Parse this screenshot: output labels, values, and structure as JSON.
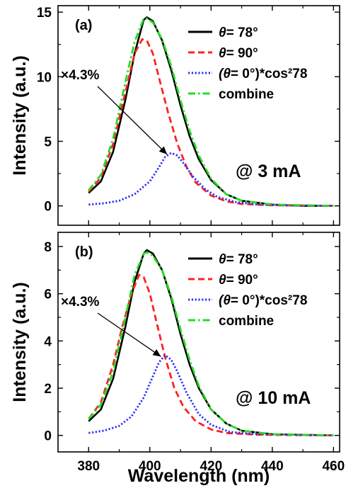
{
  "chart_data": [
    {
      "type": "line",
      "panel_label": "(a)",
      "ylabel": "Intensity (a.u.)",
      "xlabel": "",
      "xlim": [
        370,
        462
      ],
      "ylim": [
        -1.5,
        15.5
      ],
      "xticks": [
        380,
        400,
        420,
        440,
        460
      ],
      "yticks": [
        0,
        5,
        10,
        15
      ],
      "ytick_labels": [
        "0",
        "5",
        "10",
        "15"
      ],
      "legend_position": "top-right",
      "annotation_current": "@ 3 mA",
      "annotation_scale": "×4.3%",
      "series": [
        {
          "name_prefix": "θ",
          "name_suffix": "= 78°",
          "color": "#000000",
          "style": "solid",
          "points": [
            [
              380,
              1.0
            ],
            [
              384,
              1.9
            ],
            [
              388,
              4.2
            ],
            [
              392,
              8.2
            ],
            [
              395,
              11.8
            ],
            [
              398,
              14.4
            ],
            [
              399,
              14.6
            ],
            [
              401,
              14.3
            ],
            [
              404,
              12.8
            ],
            [
              407,
              10.5
            ],
            [
              410,
              7.8
            ],
            [
              413,
              5.4
            ],
            [
              416,
              3.6
            ],
            [
              420,
              2.0
            ],
            [
              425,
              0.9
            ],
            [
              430,
              0.4
            ],
            [
              440,
              0.1
            ],
            [
              450,
              0.0
            ],
            [
              460,
              0.0
            ]
          ]
        },
        {
          "name_prefix": "θ",
          "name_suffix": "= 90°",
          "color": "#ff2020",
          "style": "dash",
          "points": [
            [
              380,
              1.1
            ],
            [
              384,
              2.2
            ],
            [
              388,
              4.8
            ],
            [
              392,
              8.8
            ],
            [
              395,
              11.8
            ],
            [
              397.5,
              12.9
            ],
            [
              399,
              12.8
            ],
            [
              401,
              11.8
            ],
            [
              403,
              9.9
            ],
            [
              406,
              7.2
            ],
            [
              409,
              4.8
            ],
            [
              412,
              3.0
            ],
            [
              415,
              1.8
            ],
            [
              420,
              0.8
            ],
            [
              425,
              0.35
            ],
            [
              430,
              0.15
            ],
            [
              440,
              0.05
            ],
            [
              460,
              0.0
            ]
          ]
        },
        {
          "name_prefix": "(θ",
          "name_suffix": "= 0°)*cos²78",
          "color": "#2b2bff",
          "style": "dot",
          "points": [
            [
              380,
              0.1
            ],
            [
              385,
              0.2
            ],
            [
              390,
              0.4
            ],
            [
              395,
              0.9
            ],
            [
              400,
              1.9
            ],
            [
              403,
              3.0
            ],
            [
              405,
              3.8
            ],
            [
              407,
              4.1
            ],
            [
              409,
              3.9
            ],
            [
              411,
              3.3
            ],
            [
              414,
              2.3
            ],
            [
              418,
              1.3
            ],
            [
              422,
              0.7
            ],
            [
              428,
              0.3
            ],
            [
              435,
              0.1
            ],
            [
              445,
              0.03
            ],
            [
              460,
              0.0
            ]
          ]
        },
        {
          "name": "combine",
          "color": "#22dd22",
          "style": "dashdot",
          "points": [
            [
              380,
              1.2
            ],
            [
              384,
              2.4
            ],
            [
              388,
              5.2
            ],
            [
              392,
              9.6
            ],
            [
              395,
              12.7
            ],
            [
              398,
              14.5
            ],
            [
              399,
              14.5
            ],
            [
              401,
              14.2
            ],
            [
              404,
              12.9
            ],
            [
              407,
              10.8
            ],
            [
              410,
              8.2
            ],
            [
              413,
              5.8
            ],
            [
              416,
              3.9
            ],
            [
              420,
              2.1
            ],
            [
              425,
              0.9
            ],
            [
              430,
              0.4
            ],
            [
              440,
              0.1
            ],
            [
              460,
              0.0
            ]
          ]
        }
      ]
    },
    {
      "type": "line",
      "panel_label": "(b)",
      "ylabel": "Intensity (a.u.)",
      "xlabel": "Wavelength (nm)",
      "xlim": [
        370,
        462
      ],
      "ylim": [
        -0.7,
        8.6
      ],
      "xticks": [
        380,
        400,
        420,
        440,
        460
      ],
      "yticks": [
        0,
        2,
        4,
        6,
        8
      ],
      "ytick_labels": [
        "0",
        "2",
        "4",
        "6",
        "8"
      ],
      "xtick_labels": [
        "380",
        "400",
        "420",
        "440",
        "460"
      ],
      "legend_position": "top-right",
      "annotation_current": "@ 10 mA",
      "annotation_scale": "×4.3%",
      "series": [
        {
          "name_prefix": "θ",
          "name_suffix": "= 78°",
          "color": "#000000",
          "style": "solid",
          "points": [
            [
              380,
              0.6
            ],
            [
              384,
              1.1
            ],
            [
              388,
              2.4
            ],
            [
              392,
              4.6
            ],
            [
              395,
              6.5
            ],
            [
              398,
              7.7
            ],
            [
              399,
              7.85
            ],
            [
              401,
              7.7
            ],
            [
              404,
              7.0
            ],
            [
              407,
              5.8
            ],
            [
              410,
              4.3
            ],
            [
              413,
              3.0
            ],
            [
              416,
              2.0
            ],
            [
              420,
              1.1
            ],
            [
              425,
              0.5
            ],
            [
              430,
              0.2
            ],
            [
              440,
              0.05
            ],
            [
              460,
              0.0
            ]
          ]
        },
        {
          "name_prefix": "θ",
          "name_suffix": "= 90°",
          "color": "#ff2020",
          "style": "dash",
          "points": [
            [
              380,
              0.7
            ],
            [
              384,
              1.4
            ],
            [
              388,
              3.0
            ],
            [
              391,
              4.6
            ],
            [
              394,
              6.0
            ],
            [
              396.5,
              6.8
            ],
            [
              398,
              6.7
            ],
            [
              400,
              6.0
            ],
            [
              402,
              4.9
            ],
            [
              405,
              3.3
            ],
            [
              408,
              2.0
            ],
            [
              411,
              1.2
            ],
            [
              415,
              0.6
            ],
            [
              420,
              0.25
            ],
            [
              425,
              0.1
            ],
            [
              435,
              0.03
            ],
            [
              460,
              0.0
            ]
          ]
        },
        {
          "name_prefix": "(θ",
          "name_suffix": "= 0°)*cos²78",
          "color": "#2b2bff",
          "style": "dot",
          "points": [
            [
              380,
              0.1
            ],
            [
              385,
              0.2
            ],
            [
              390,
              0.4
            ],
            [
              394,
              0.8
            ],
            [
              398,
              1.6
            ],
            [
              401,
              2.5
            ],
            [
              403,
              3.1
            ],
            [
              405,
              3.4
            ],
            [
              407,
              3.2
            ],
            [
              409,
              2.7
            ],
            [
              412,
              1.8
            ],
            [
              416,
              0.9
            ],
            [
              420,
              0.45
            ],
            [
              426,
              0.15
            ],
            [
              435,
              0.05
            ],
            [
              460,
              0.0
            ]
          ]
        },
        {
          "name": "combine",
          "color": "#22dd22",
          "style": "dashdot",
          "points": [
            [
              380,
              0.7
            ],
            [
              384,
              1.3
            ],
            [
              388,
              2.7
            ],
            [
              392,
              5.0
            ],
            [
              395,
              6.8
            ],
            [
              398,
              7.7
            ],
            [
              399,
              7.75
            ],
            [
              401,
              7.6
            ],
            [
              404,
              7.0
            ],
            [
              407,
              5.9
            ],
            [
              410,
              4.5
            ],
            [
              413,
              3.2
            ],
            [
              416,
              2.1
            ],
            [
              420,
              1.1
            ],
            [
              425,
              0.5
            ],
            [
              430,
              0.2
            ],
            [
              440,
              0.05
            ],
            [
              460,
              0.0
            ]
          ]
        }
      ]
    }
  ]
}
